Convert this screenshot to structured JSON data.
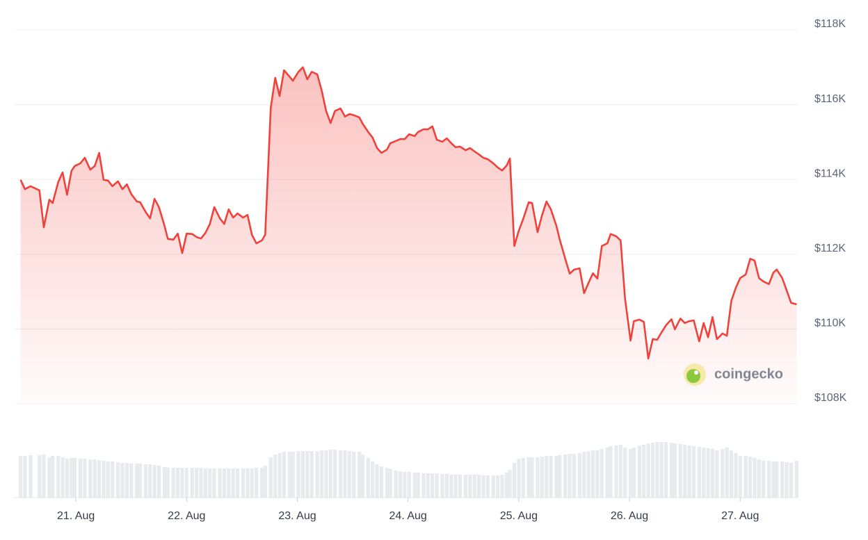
{
  "chart_data": {
    "type": "line",
    "x": [
      20.5,
      20.54,
      20.59,
      20.67,
      20.71,
      20.76,
      20.79,
      20.84,
      20.88,
      20.92,
      20.96,
      20.99,
      21.04,
      21.08,
      21.13,
      21.17,
      21.21,
      21.25,
      21.29,
      21.33,
      21.38,
      21.42,
      21.46,
      21.5,
      21.55,
      21.58,
      21.63,
      21.67,
      21.71,
      21.75,
      21.8,
      21.83,
      21.88,
      21.92,
      21.96,
      22.0,
      22.05,
      22.09,
      22.13,
      22.17,
      22.21,
      22.25,
      22.3,
      22.34,
      22.38,
      22.42,
      22.46,
      22.51,
      22.55,
      22.59,
      22.63,
      22.68,
      22.71,
      22.76,
      22.8,
      22.84,
      22.88,
      22.93,
      22.96,
      23.01,
      23.05,
      23.09,
      23.13,
      23.18,
      23.22,
      23.26,
      23.3,
      23.34,
      23.39,
      23.43,
      23.47,
      23.51,
      23.56,
      23.59,
      23.64,
      23.68,
      23.72,
      23.76,
      23.81,
      23.84,
      23.89,
      23.93,
      23.97,
      24.01,
      24.06,
      24.09,
      24.14,
      24.18,
      24.22,
      24.26,
      24.31,
      24.35,
      24.39,
      24.43,
      24.47,
      24.52,
      24.56,
      24.6,
      24.64,
      24.68,
      24.72,
      24.77,
      24.81,
      24.85,
      24.89,
      24.92,
      24.96,
      25.0,
      25.04,
      25.09,
      25.12,
      25.17,
      25.21,
      25.25,
      25.29,
      25.34,
      25.37,
      25.42,
      25.46,
      25.5,
      25.55,
      25.59,
      25.63,
      25.67,
      25.71,
      25.75,
      25.8,
      25.83,
      25.88,
      25.92,
      25.96,
      26.01,
      26.04,
      26.09,
      26.13,
      26.17,
      26.21,
      26.25,
      26.29,
      26.33,
      26.38,
      26.41,
      26.46,
      26.5,
      26.54,
      26.58,
      26.63,
      26.67,
      26.71,
      26.75,
      26.79,
      26.84,
      26.88,
      26.92,
      26.96,
      27.0,
      27.05,
      27.09,
      27.13,
      27.17,
      27.21,
      27.26,
      27.3,
      27.33,
      27.38,
      27.42,
      27.46,
      27.51
    ],
    "series": [
      {
        "color": "#f0413b",
        "values": [
          113.99,
          113.74,
          113.82,
          113.71,
          112.72,
          113.46,
          113.37,
          113.93,
          114.19,
          113.59,
          114.23,
          114.36,
          114.43,
          114.58,
          114.26,
          114.36,
          114.71,
          113.99,
          113.97,
          113.82,
          113.95,
          113.74,
          113.87,
          113.61,
          113.41,
          113.39,
          113.13,
          112.96,
          113.48,
          113.26,
          112.76,
          112.41,
          112.39,
          112.55,
          112.03,
          112.55,
          112.54,
          112.46,
          112.42,
          112.57,
          112.81,
          113.26,
          112.96,
          112.81,
          113.2,
          112.98,
          113.09,
          112.98,
          113.05,
          112.52,
          112.29,
          112.37,
          112.52,
          115.92,
          116.72,
          116.23,
          116.92,
          116.75,
          116.64,
          116.88,
          117.0,
          116.68,
          116.88,
          116.81,
          116.38,
          115.83,
          115.51,
          115.83,
          115.9,
          115.68,
          115.75,
          115.72,
          115.66,
          115.49,
          115.27,
          115.12,
          114.84,
          114.71,
          114.8,
          114.97,
          115.03,
          115.08,
          115.08,
          115.21,
          115.16,
          115.27,
          115.34,
          115.34,
          115.42,
          115.06,
          115.01,
          115.1,
          114.97,
          114.86,
          114.88,
          114.78,
          114.84,
          114.75,
          114.67,
          114.58,
          114.54,
          114.43,
          114.32,
          114.24,
          114.37,
          114.56,
          112.22,
          112.63,
          112.94,
          113.39,
          113.37,
          112.59,
          113.04,
          113.41,
          113.2,
          112.76,
          112.39,
          111.88,
          111.48,
          111.59,
          111.62,
          110.96,
          111.23,
          111.49,
          111.35,
          112.22,
          112.29,
          112.54,
          112.48,
          112.37,
          110.81,
          109.69,
          110.21,
          110.25,
          110.19,
          109.21,
          109.73,
          109.71,
          109.91,
          110.1,
          110.26,
          109.99,
          110.28,
          110.16,
          110.21,
          110.23,
          109.67,
          110.16,
          109.78,
          110.32,
          109.73,
          109.88,
          109.82,
          110.75,
          111.1,
          111.36,
          111.46,
          111.88,
          111.83,
          111.36,
          111.27,
          111.2,
          111.51,
          111.59,
          111.36,
          111.03,
          110.7,
          110.66
        ]
      },
      {
        "axis": "y2",
        "color": "#e8eaee",
        "values": [
          60,
          60,
          61,
          61,
          62,
          58,
          60,
          60,
          58,
          56,
          57,
          57,
          56,
          56,
          55,
          55,
          54,
          53,
          52,
          52,
          51,
          50,
          50,
          49,
          49,
          49,
          48,
          48,
          47,
          46,
          44,
          43,
          43,
          43,
          43,
          43,
          43,
          43,
          43,
          42,
          42,
          42,
          42,
          42,
          42,
          42,
          42,
          42,
          42,
          42,
          43,
          43,
          46,
          58,
          62,
          64,
          66,
          66,
          66,
          67,
          67,
          67,
          67,
          67,
          68,
          68,
          69,
          69,
          68,
          68,
          67,
          66,
          66,
          62,
          57,
          52,
          48,
          45,
          43,
          41,
          39,
          38,
          37,
          37,
          36,
          36,
          35,
          35,
          35,
          35,
          34,
          34,
          33,
          33,
          33,
          33,
          33,
          33,
          33,
          32,
          32,
          32,
          32,
          33,
          36,
          40,
          50,
          56,
          57,
          58,
          58,
          58,
          59,
          60,
          60,
          60,
          61,
          62,
          63,
          63,
          64,
          66,
          67,
          68,
          68,
          70,
          72,
          74,
          75,
          76,
          72,
          70,
          72,
          75,
          76,
          78,
          79,
          80,
          80,
          80,
          79,
          78,
          77,
          76,
          75,
          74,
          73,
          72,
          71,
          70,
          68,
          70,
          72,
          68,
          64,
          60,
          60,
          59,
          57,
          55,
          53,
          53,
          52,
          52,
          52,
          51,
          50,
          53
        ]
      }
    ],
    "xlim": [
      20.44,
      27.52
    ],
    "xticks": [
      {
        "value": 21,
        "label": "21. Aug"
      },
      {
        "value": 22,
        "label": "22. Aug"
      },
      {
        "value": 23,
        "label": "23. Aug"
      },
      {
        "value": 24,
        "label": "24. Aug"
      },
      {
        "value": 25,
        "label": "25. Aug"
      },
      {
        "value": 26,
        "label": "26. Aug"
      },
      {
        "value": 27,
        "label": "27. Aug"
      }
    ],
    "ylim": [
      108,
      118
    ],
    "yticks": [
      {
        "value": 108,
        "label": "$108K"
      },
      {
        "value": 110,
        "label": "$110K"
      },
      {
        "value": 112,
        "label": "$112K"
      },
      {
        "value": 114,
        "label": "$114K"
      },
      {
        "value": 116,
        "label": "$116K"
      },
      {
        "value": 118,
        "label": "$118K"
      }
    ],
    "y2lim": [
      0,
      100
    ],
    "grid": true,
    "watermark": "coingecko"
  }
}
